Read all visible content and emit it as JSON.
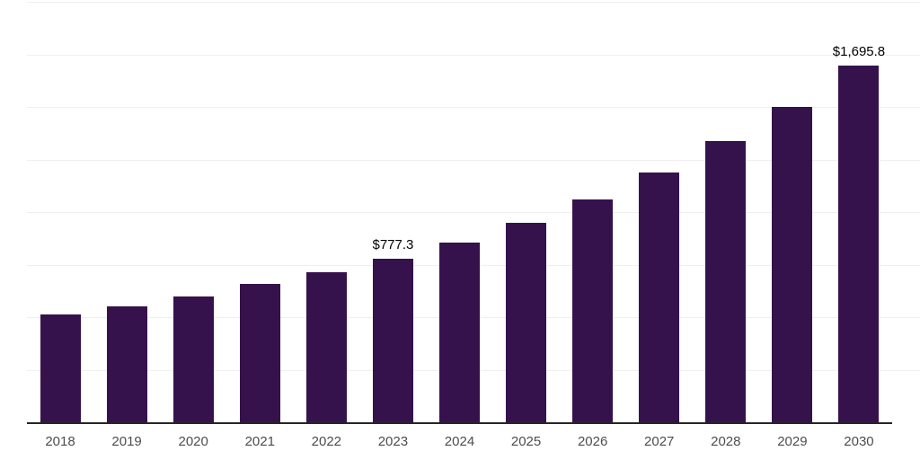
{
  "chart_data": {
    "type": "bar",
    "title": "",
    "xlabel": "",
    "ylabel": "",
    "categories": [
      "2018",
      "2019",
      "2020",
      "2021",
      "2022",
      "2023",
      "2024",
      "2025",
      "2026",
      "2027",
      "2028",
      "2029",
      "2030"
    ],
    "values": [
      512,
      552,
      598,
      658,
      715,
      777.3,
      854,
      947,
      1059,
      1190,
      1336,
      1502,
      1695.8
    ],
    "annotations": [
      {
        "category": "2023",
        "text": "$777.3"
      },
      {
        "category": "2030",
        "text": "$1,695.8"
      }
    ],
    "ylim": [
      0,
      2000
    ],
    "grid": true,
    "gridline_step": 250,
    "legend_position": "none",
    "y_axis_labels_visible": false
  },
  "colors": {
    "bar": "#36124d",
    "gridline": "#f0eef2",
    "axis_line": "#262626",
    "tick_label": "#4d4d4d",
    "data_label": "#000000",
    "background": "#ffffff"
  }
}
